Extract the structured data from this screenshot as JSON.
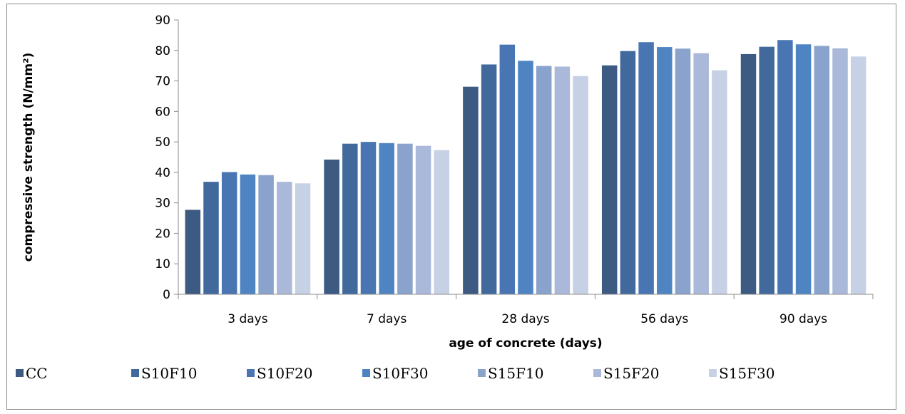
{
  "chart_data": {
    "type": "bar",
    "title": "",
    "xlabel": "age of concrete (days)",
    "ylabel": "compressive strength (N/mm²)",
    "ylim": [
      0,
      90
    ],
    "yticks": [
      "0",
      "10",
      "20",
      "30",
      "40",
      "50",
      "60",
      "70",
      "80",
      "90"
    ],
    "categories": [
      "3 days",
      "7 days",
      "28 days",
      "56 days",
      "90 days"
    ],
    "grid": false,
    "legend_position": "bottom",
    "series": [
      {
        "name": "CC",
        "color": "#3c5a82",
        "values": [
          27.7,
          44.2,
          68.1,
          75.1,
          78.8
        ]
      },
      {
        "name": "S10F10",
        "color": "#42699c",
        "values": [
          36.9,
          49.4,
          75.4,
          79.8,
          81.2
        ]
      },
      {
        "name": "S10F20",
        "color": "#4976b2",
        "values": [
          40.1,
          50.0,
          81.9,
          82.7,
          83.4
        ]
      },
      {
        "name": "S10F30",
        "color": "#4f84c2",
        "values": [
          39.3,
          49.6,
          76.6,
          81.1,
          82.0
        ]
      },
      {
        "name": "S15F10",
        "color": "#89a3cd",
        "values": [
          39.1,
          49.4,
          74.9,
          80.6,
          81.5
        ]
      },
      {
        "name": "S15F20",
        "color": "#aab9d9",
        "values": [
          36.9,
          48.7,
          74.7,
          79.1,
          80.7
        ]
      },
      {
        "name": "S15F30",
        "color": "#c7d1e6",
        "values": [
          36.4,
          47.3,
          71.6,
          73.5,
          78.0
        ]
      }
    ]
  }
}
